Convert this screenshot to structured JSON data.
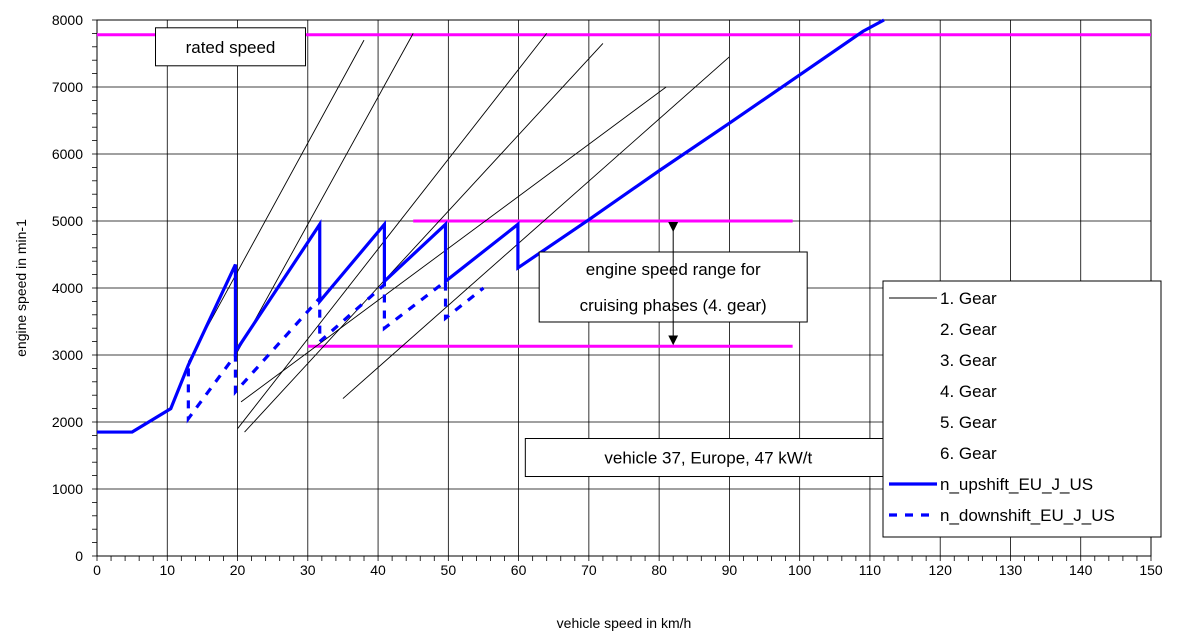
{
  "chart_data": {
    "type": "line",
    "title": "",
    "xlabel": "vehicle speed in km/h",
    "ylabel": "engine speed in min-1",
    "xlim": [
      0,
      150
    ],
    "ylim": [
      0,
      8000
    ],
    "x_ticks": [
      0,
      10,
      20,
      30,
      40,
      50,
      60,
      70,
      80,
      90,
      100,
      110,
      120,
      130,
      140,
      150
    ],
    "y_ticks": [
      0,
      1000,
      2000,
      3000,
      4000,
      5000,
      6000,
      7000,
      8000
    ],
    "grid": true,
    "legend_position": "right",
    "colors": {
      "upshift": "#0000ff",
      "downshift": "#0000ff",
      "reference": "#ff00ff",
      "gear": "#000000"
    },
    "series": [
      {
        "name": "1. Gear",
        "style": "thin",
        "x": [
          13,
          38
        ],
        "y": [
          2900,
          7700
        ]
      },
      {
        "name": "2. Gear",
        "style": "thin",
        "x": [
          20,
          45
        ],
        "y": [
          3050,
          7800
        ]
      },
      {
        "name": "3. Gear",
        "style": "thin",
        "x": [
          20,
          64
        ],
        "y": [
          1900,
          7800
        ]
      },
      {
        "name": "4. Gear",
        "style": "thin",
        "x": [
          21,
          72
        ],
        "y": [
          1850,
          7650
        ]
      },
      {
        "name": "5. Gear",
        "style": "thin",
        "x": [
          20.5,
          81
        ],
        "y": [
          2300,
          7000
        ]
      },
      {
        "name": "6. Gear",
        "style": "thin",
        "x": [
          35,
          90
        ],
        "y": [
          2350,
          7450
        ]
      },
      {
        "name": "n_upshift_EU_J_US",
        "style": "solid",
        "x": [
          0,
          5,
          10.5,
          13,
          19.7,
          19.7,
          31.7,
          31.7,
          40.9,
          40.9,
          49.6,
          49.6,
          59.9,
          59.9,
          70,
          80,
          90,
          100,
          109,
          112
        ],
        "y": [
          1850,
          1850,
          2200,
          2850,
          4350,
          3050,
          4950,
          3800,
          4950,
          4100,
          4950,
          4100,
          4950,
          4300,
          5020,
          5750,
          6460,
          7180,
          7830,
          8000
        ]
      },
      {
        "name": "n_downshift_EU_J_US",
        "style": "dashed",
        "x": [
          13,
          13,
          19.7,
          19.7,
          31.7,
          31.7,
          40.9,
          40.9,
          49.6,
          49.6,
          55
        ],
        "y": [
          2800,
          2050,
          3000,
          2450,
          3850,
          3200,
          4050,
          3400,
          4100,
          3550,
          4000
        ]
      }
    ],
    "reference_lines": [
      {
        "x": [
          0,
          150
        ],
        "y": 7780
      },
      {
        "x": [
          45,
          99
        ],
        "y": 5000
      },
      {
        "x": [
          30,
          99
        ],
        "y": 3130
      }
    ],
    "annotations": [
      {
        "text": "rated speed",
        "x": 19,
        "y": 7600
      },
      {
        "text": "engine speed range for",
        "x": 82,
        "y": 4280
      },
      {
        "text": "cruising phases (4. gear)",
        "x": 82,
        "y": 3750
      },
      {
        "text": "vehicle 37, Europe, 47 kW/t",
        "x": 87,
        "y": 1470
      }
    ]
  }
}
